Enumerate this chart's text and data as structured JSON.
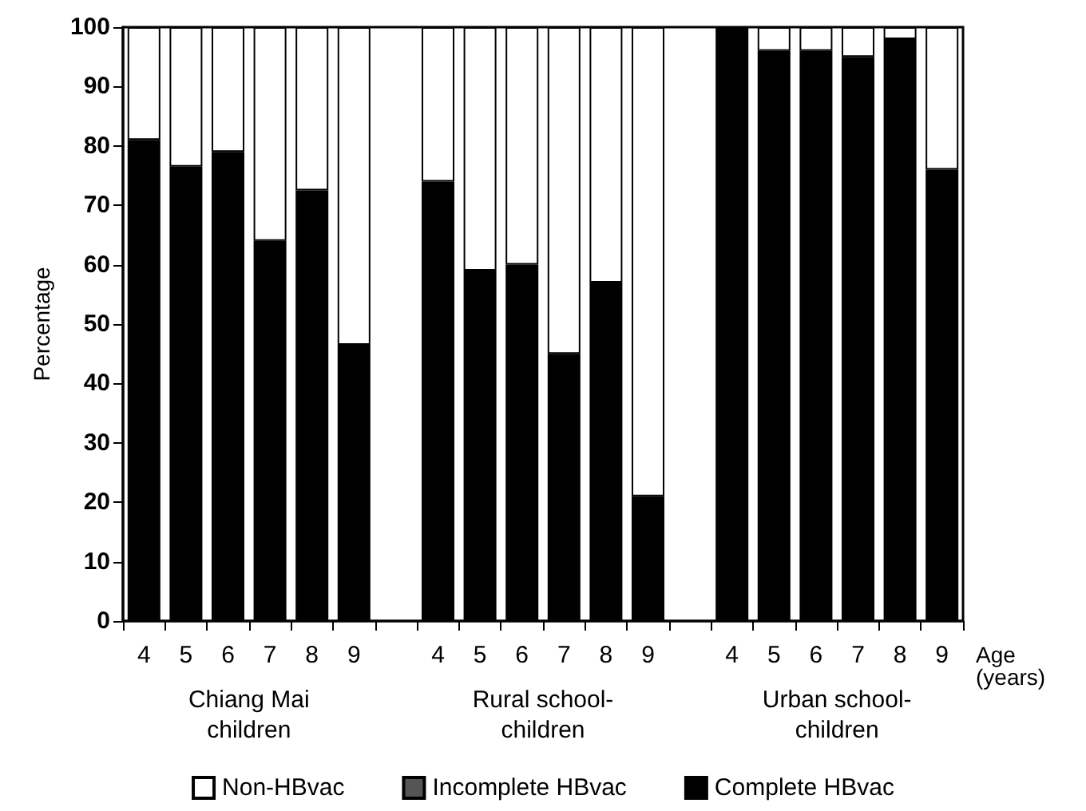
{
  "chart_data": {
    "type": "bar",
    "stacked": true,
    "ylabel": "Percentage",
    "xlabel": "Age\n(years)",
    "categories": [
      "4",
      "5",
      "6",
      "7",
      "8",
      "9",
      null,
      "4",
      "5",
      "6",
      "7",
      "8",
      "9",
      null,
      "4",
      "5",
      "6",
      "7",
      "8",
      "9"
    ],
    "series": [
      {
        "name": "Complete HBvac",
        "color": "#000000",
        "values": [
          81,
          76.5,
          79,
          64,
          72.5,
          46.5,
          null,
          74,
          59,
          60,
          45,
          57,
          21,
          null,
          100,
          96,
          96,
          95,
          98,
          76
        ]
      },
      {
        "name": "Incomplete HBvac",
        "color": "#555555",
        "values": [
          null,
          null,
          null,
          null,
          null,
          null,
          null,
          null,
          null,
          null,
          null,
          null,
          null,
          null,
          null,
          null,
          null,
          null,
          null,
          null
        ]
      },
      {
        "name": "Non-HBvac",
        "color": "#ffffff",
        "values": [
          19,
          23.5,
          21,
          36,
          27.5,
          53.5,
          null,
          26,
          41,
          40,
          55,
          43,
          79,
          null,
          0,
          4,
          4,
          5,
          2,
          24
        ]
      }
    ],
    "ylim": [
      0,
      100
    ],
    "yticks": [
      0,
      10,
      20,
      30,
      40,
      50,
      60,
      70,
      80,
      90,
      100
    ],
    "grid": false,
    "legend": "bottom",
    "annotations": [
      "Chiang Mai\nchildren",
      "Rural school-\nchildren",
      "Urban school-\nchildren"
    ]
  }
}
